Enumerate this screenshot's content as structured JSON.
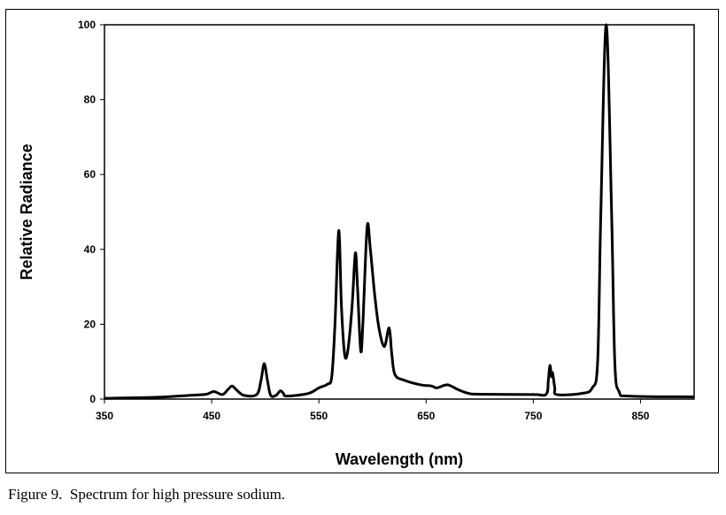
{
  "chart_data": {
    "type": "line",
    "title": "",
    "xlabel": "Wavelength (nm)",
    "ylabel": "Relative Radiance",
    "xlim": [
      350,
      900
    ],
    "ylim": [
      0,
      100
    ],
    "xticks": [
      350,
      450,
      550,
      650,
      750,
      850
    ],
    "yticks": [
      0,
      20,
      40,
      60,
      80,
      100
    ],
    "grid": false,
    "series": [
      {
        "name": "High pressure sodium",
        "color": "#000000",
        "x": [
          350,
          400,
          430,
          445,
          452,
          460,
          465,
          469,
          473,
          480,
          492,
          496,
          499,
          502,
          505,
          510,
          514,
          517,
          520,
          540,
          550,
          558,
          562,
          565,
          568.5,
          571,
          574,
          577,
          581,
          584,
          586,
          589,
          591,
          595,
          598,
          602,
          606,
          611,
          615.5,
          618,
          621,
          630,
          645,
          655,
          660,
          670,
          680,
          690,
          700,
          750,
          762,
          764,
          765.5,
          767,
          768,
          770,
          772,
          795,
          805,
          810,
          813,
          818,
          823,
          826,
          830,
          840,
          900
        ],
        "y": [
          0.2,
          0.5,
          1,
          1.3,
          2,
          1.2,
          2.5,
          3.5,
          2.5,
          1,
          1.2,
          5,
          9.5,
          5,
          1,
          1,
          2.2,
          1.5,
          0.8,
          1.5,
          3,
          4,
          6,
          20,
          45,
          25,
          12,
          13,
          25,
          39,
          30,
          13,
          20,
          46,
          40,
          28,
          19,
          14,
          19,
          12,
          6.5,
          5,
          3.8,
          3.5,
          3,
          3.8,
          2.5,
          1.5,
          1.3,
          1.2,
          1.3,
          5,
          9,
          6,
          7,
          3,
          1.2,
          1.5,
          3,
          10,
          50,
          100,
          50,
          10,
          2,
          0.8,
          0.6
        ]
      }
    ]
  },
  "caption": "Figure 9.  Spectrum for high pressure sodium."
}
